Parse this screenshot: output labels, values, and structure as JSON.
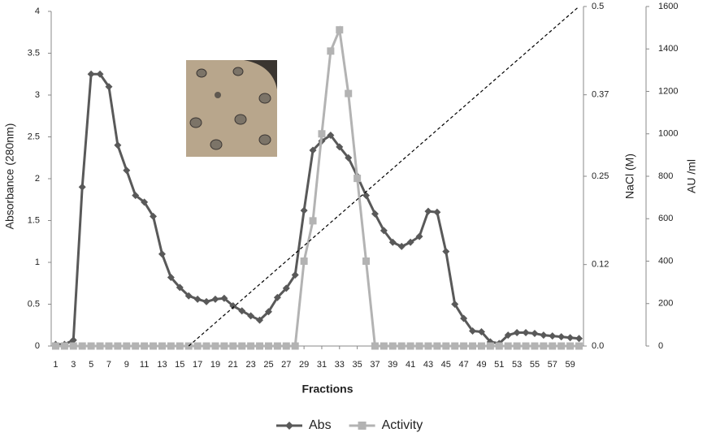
{
  "chart_data": {
    "type": "line",
    "x_label": "Fractions",
    "y_label": "Absorbance (280nm)",
    "y2_label": "NaCl (M)",
    "y3_label": "AU /ml",
    "x": [
      1,
      2,
      3,
      4,
      5,
      6,
      7,
      8,
      9,
      10,
      11,
      12,
      13,
      14,
      15,
      16,
      17,
      18,
      19,
      20,
      21,
      22,
      23,
      24,
      25,
      26,
      27,
      28,
      29,
      30,
      31,
      32,
      33,
      34,
      35,
      36,
      37,
      38,
      39,
      40,
      41,
      42,
      43,
      44,
      45,
      46,
      47,
      48,
      49,
      50,
      51,
      52,
      53,
      54,
      55,
      56,
      57,
      58,
      59,
      60
    ],
    "xlim": [
      0.5,
      60.5
    ],
    "xticks": [
      1,
      3,
      5,
      7,
      9,
      11,
      13,
      15,
      17,
      19,
      21,
      23,
      25,
      27,
      29,
      31,
      33,
      35,
      37,
      39,
      41,
      43,
      45,
      47,
      49,
      51,
      53,
      55,
      57,
      59
    ],
    "ylim": [
      0,
      4
    ],
    "yticks": [
      0,
      0.5,
      1,
      1.5,
      2,
      2.5,
      3,
      3.5,
      4
    ],
    "y2lim": [
      0,
      0.5
    ],
    "y2ticks": [
      {
        "value": 0,
        "label": "0.0"
      },
      0.12,
      0.25,
      0.37,
      0.5
    ],
    "y3lim": [
      0,
      1600
    ],
    "y3ticks": [
      0,
      200,
      400,
      600,
      800,
      1000,
      1200,
      1400,
      1600
    ],
    "legend": "bottom",
    "series": [
      {
        "name": "Abs",
        "color": "#595959",
        "marker": "diamond",
        "axis": "y",
        "values": [
          0.02,
          0.02,
          0.07,
          1.9,
          3.25,
          3.25,
          3.1,
          2.4,
          2.1,
          1.8,
          1.72,
          1.55,
          1.1,
          0.82,
          0.7,
          0.6,
          0.56,
          0.53,
          0.56,
          0.57,
          0.48,
          0.42,
          0.36,
          0.31,
          0.41,
          0.58,
          0.69,
          0.85,
          1.62,
          2.34,
          2.45,
          2.52,
          2.38,
          2.25,
          2.03,
          1.8,
          1.58,
          1.38,
          1.24,
          1.19,
          1.24,
          1.31,
          1.61,
          1.6,
          1.13,
          0.5,
          0.33,
          0.18,
          0.17,
          0.05,
          0.03,
          0.13,
          0.16,
          0.16,
          0.15,
          0.13,
          0.12,
          0.11,
          0.1,
          0.09
        ]
      },
      {
        "name": "Activity",
        "color": "#b3b3b3",
        "marker": "square",
        "axis": "y3",
        "values": [
          0,
          0,
          0,
          0,
          0,
          0,
          0,
          0,
          0,
          0,
          0,
          0,
          0,
          0,
          0,
          0,
          0,
          0,
          0,
          0,
          0,
          0,
          0,
          0,
          0,
          0,
          0,
          0,
          400,
          590,
          1000,
          1390,
          1490,
          1190,
          790,
          400,
          0,
          0,
          0,
          0,
          0,
          0,
          0,
          0,
          0,
          0,
          0,
          0,
          0,
          0,
          0,
          0,
          0,
          0,
          0,
          0,
          0,
          0,
          0,
          0
        ]
      },
      {
        "color": "#000000",
        "dashed": true,
        "axis": "y2",
        "x": [
          16,
          60
        ],
        "values": [
          0,
          0.5
        ]
      }
    ]
  }
}
